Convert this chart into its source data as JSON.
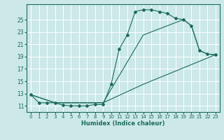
{
  "xlabel": "Humidex (Indice chaleur)",
  "bg_color": "#cce8e8",
  "grid_color": "#ffffff",
  "line_color": "#1a6b5a",
  "xlim": [
    -0.5,
    23.5
  ],
  "ylim": [
    10.0,
    27.5
  ],
  "xticks": [
    0,
    1,
    2,
    3,
    4,
    5,
    6,
    7,
    8,
    9,
    10,
    11,
    12,
    13,
    14,
    15,
    16,
    17,
    18,
    19,
    20,
    21,
    22,
    23
  ],
  "yticks": [
    11,
    13,
    15,
    17,
    19,
    21,
    23,
    25
  ],
  "curve1_x": [
    0,
    1,
    2,
    3,
    4,
    5,
    6,
    7,
    8,
    9,
    10,
    11,
    12,
    13,
    14,
    15,
    16,
    17,
    18,
    19,
    20,
    21,
    22,
    23
  ],
  "curve1_y": [
    12.8,
    11.5,
    11.5,
    11.5,
    11.1,
    11.0,
    11.0,
    11.0,
    11.2,
    11.2,
    14.5,
    20.2,
    22.5,
    26.3,
    26.6,
    26.6,
    26.3,
    26.0,
    25.2,
    25.0,
    24.0,
    20.0,
    19.4,
    19.3
  ],
  "curve2_x": [
    0,
    3,
    9,
    14,
    23
  ],
  "curve2_y": [
    12.8,
    11.5,
    11.5,
    14.5,
    19.3
  ],
  "curve3_x": [
    0,
    3,
    9,
    14,
    19,
    20,
    21,
    22,
    23
  ],
  "curve3_y": [
    12.8,
    11.5,
    11.5,
    22.5,
    25.0,
    24.0,
    20.0,
    19.4,
    19.3
  ]
}
